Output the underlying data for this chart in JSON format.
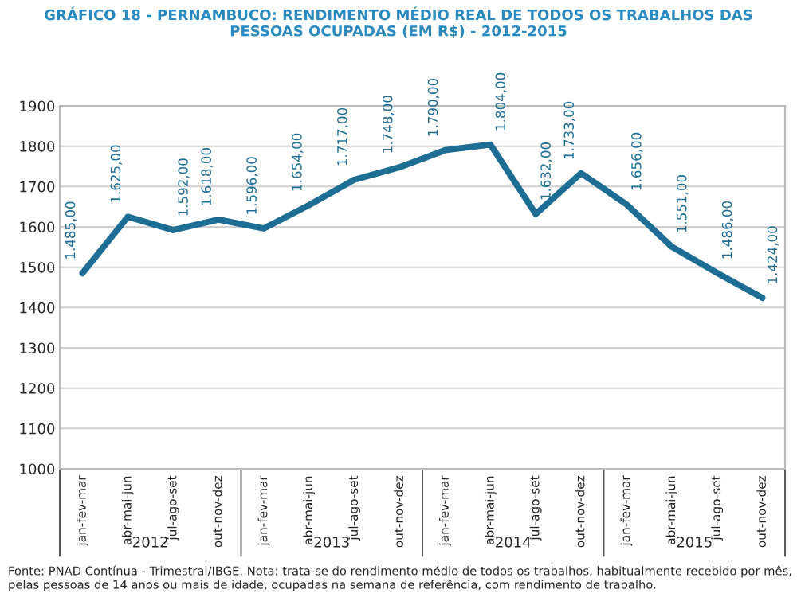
{
  "chart_data": {
    "type": "line",
    "title": "GRÁFICO 18 - PERNAMBUCO: RENDIMENTO MÉDIO REAL DE TODOS OS TRABALHOS DAS\nPESSOAS OCUPADAS (EM R$) - 2012-2015",
    "categories": [
      "jan-fev-mar",
      "abr-mai-jun",
      "jul-ago-set",
      "out-nov-dez",
      "jan-fev-mar",
      "abr-mai-jun",
      "jul-ago-set",
      "out-nov-dez",
      "jan-fev-mar",
      "abr-mai-jun",
      "jul-ago-set",
      "out-nov-dez",
      "jan-fev-mar",
      "abr-mai-jun",
      "jul-ago-set",
      "out-nov-dez"
    ],
    "series": [
      {
        "color": "#1d6d94",
        "values": [
          1485,
          1625,
          1592,
          1618,
          1596,
          1654,
          1717,
          1748,
          1790,
          1804,
          1632,
          1733,
          1656,
          1551,
          1486,
          1424
        ],
        "value_labels": [
          "1.485,00",
          "1.625,00",
          "1.592,00",
          "1.618,00",
          "1.596,00",
          "1.654,00",
          "1.717,00",
          "1.748,00",
          "1.790,00",
          "1.804,00",
          "1.632,00",
          "1.733,00",
          "1.656,00",
          "1.551,00",
          "1.486,00",
          "1.424,00"
        ]
      }
    ],
    "ylim": [
      1000,
      1900
    ],
    "yticks": [
      1000,
      1100,
      1200,
      1300,
      1400,
      1500,
      1600,
      1700,
      1800,
      1900
    ],
    "grid": "y",
    "marker": "none",
    "line_style": "solid",
    "annotations": [
      "2012",
      "2013",
      "2014",
      "2015",
      "Fonte: PNAD Contínua - Trimestral/IBGE. Nota: trata-se do rendimento médio de todos os trabalhos, habitualmente recebido por mês, pelas pessoas de 14 anos ou mais de idade, ocupadas na semana de referência, com rendimento de trabalho."
    ]
  }
}
